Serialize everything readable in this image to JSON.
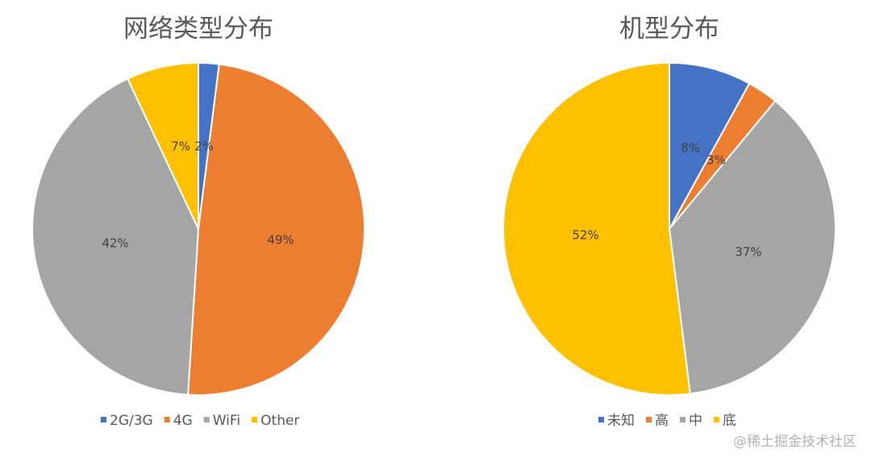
{
  "chart_data": [
    {
      "type": "pie",
      "title": "网络类型分布",
      "categories": [
        "2G/3G",
        "4G",
        "WiFi",
        "Other"
      ],
      "values": [
        2,
        49,
        42,
        7
      ],
      "labels": [
        "2%",
        "49%",
        "42%",
        "7%"
      ],
      "colors": [
        "#4472C4",
        "#ED7D31",
        "#A5A5A5",
        "#FFC000"
      ],
      "legend": "bottom"
    },
    {
      "type": "pie",
      "title": "机型分布",
      "categories": [
        "未知",
        "高",
        "中",
        "底"
      ],
      "values": [
        8,
        3,
        37,
        52
      ],
      "labels": [
        "8%",
        "3%",
        "37%",
        "52%"
      ],
      "colors": [
        "#4472C4",
        "#ED7D31",
        "#A5A5A5",
        "#FFC000"
      ],
      "legend": "bottom"
    }
  ],
  "watermark": "@稀土掘金技术社区"
}
